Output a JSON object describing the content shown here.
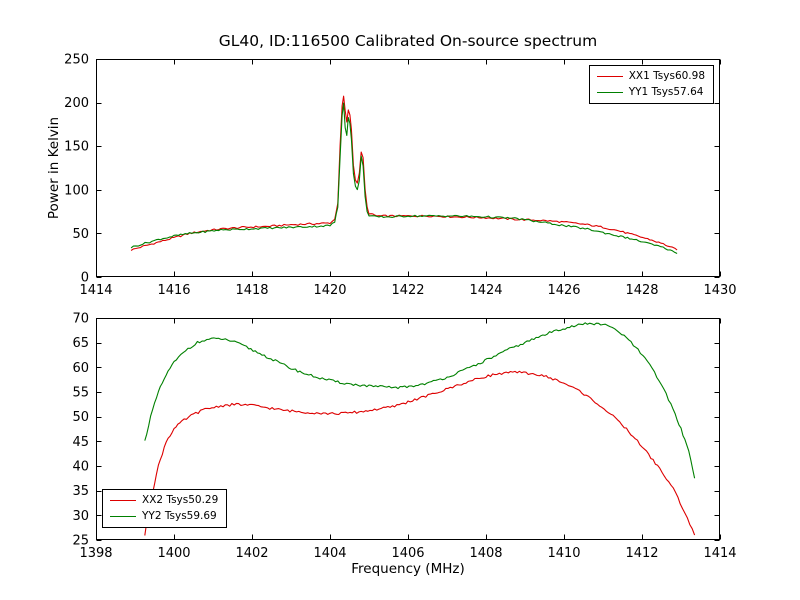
{
  "figure": {
    "title": "GL40, ID:116500 Calibrated On-source spectrum",
    "xlabel": "Frequency (MHz)",
    "ylabel": "Power in Kelvin",
    "background": "#ffffff",
    "axis_color": "#000000"
  },
  "chart_data": [
    {
      "type": "line",
      "title": "GL40, ID:116500 Calibrated On-source spectrum",
      "xlabel": "",
      "ylabel": "Power in Kelvin",
      "xlim": [
        1414,
        1430
      ],
      "ylim": [
        0,
        250
      ],
      "xticks": [
        1414,
        1416,
        1418,
        1420,
        1422,
        1424,
        1426,
        1428,
        1430
      ],
      "yticks": [
        0,
        50,
        100,
        150,
        200,
        250
      ],
      "grid": false,
      "legend_position": "upper right",
      "series": [
        {
          "name": "XX1 Tsys60.98",
          "color": "#dd0000",
          "x": [
            1414.9,
            1415.2,
            1415.6,
            1416.0,
            1416.4,
            1416.8,
            1417.2,
            1417.8,
            1418.4,
            1419.0,
            1419.6,
            1420.0,
            1420.12,
            1420.2,
            1420.26,
            1420.31,
            1420.35,
            1420.39,
            1420.43,
            1420.47,
            1420.51,
            1420.55,
            1420.6,
            1420.65,
            1420.7,
            1420.75,
            1420.8,
            1420.85,
            1420.9,
            1420.95,
            1421.0,
            1421.2,
            1421.6,
            1422.0,
            1422.6,
            1423.2,
            1424.0,
            1424.8,
            1425.4,
            1426.0,
            1426.6,
            1427.0,
            1427.4,
            1427.8,
            1428.2,
            1428.6,
            1428.9
          ],
          "y": [
            31,
            35,
            40,
            45,
            50,
            53,
            55,
            57,
            58,
            60,
            61,
            62,
            66,
            85,
            150,
            196,
            207,
            190,
            178,
            191,
            186,
            170,
            128,
            112,
            108,
            118,
            144,
            136,
            100,
            80,
            73,
            70,
            70,
            70,
            70,
            69,
            68,
            66,
            65,
            63,
            60,
            57,
            53,
            48,
            43,
            37,
            31
          ]
        },
        {
          "name": "YY1 Tsys57.64",
          "color": "#008000",
          "x": [
            1414.9,
            1415.2,
            1415.6,
            1416.0,
            1416.4,
            1416.8,
            1417.2,
            1417.8,
            1418.4,
            1419.0,
            1419.6,
            1420.0,
            1420.12,
            1420.2,
            1420.26,
            1420.31,
            1420.35,
            1420.39,
            1420.43,
            1420.47,
            1420.51,
            1420.55,
            1420.6,
            1420.65,
            1420.7,
            1420.75,
            1420.8,
            1420.85,
            1420.9,
            1420.95,
            1421.0,
            1421.2,
            1421.6,
            1422.0,
            1422.6,
            1423.2,
            1424.0,
            1424.8,
            1425.4,
            1426.0,
            1426.6,
            1427.0,
            1427.4,
            1427.8,
            1428.2,
            1428.6,
            1428.9
          ],
          "y": [
            34,
            38,
            43,
            47,
            50,
            52,
            54,
            55,
            56,
            57,
            58,
            59,
            63,
            80,
            138,
            186,
            200,
            172,
            162,
            183,
            177,
            158,
            118,
            104,
            101,
            110,
            138,
            128,
            93,
            75,
            70,
            69,
            69,
            70,
            70,
            70,
            69,
            67,
            63,
            59,
            55,
            51,
            47,
            43,
            38,
            33,
            27
          ]
        }
      ]
    },
    {
      "type": "line",
      "title": "",
      "xlabel": "Frequency (MHz)",
      "ylabel": "",
      "xlim": [
        1398,
        1414
      ],
      "ylim": [
        25,
        70
      ],
      "xticks": [
        1398,
        1400,
        1402,
        1404,
        1406,
        1408,
        1410,
        1412,
        1414
      ],
      "yticks": [
        25,
        30,
        35,
        40,
        45,
        50,
        55,
        60,
        65,
        70
      ],
      "grid": false,
      "legend_position": "lower left",
      "series": [
        {
          "name": "XX2 Tsys50.29",
          "color": "#dd0000",
          "x": [
            1399.25,
            1399.4,
            1399.6,
            1399.8,
            1400.0,
            1400.2,
            1400.5,
            1400.8,
            1401.2,
            1401.6,
            1402.0,
            1402.4,
            1402.8,
            1403.2,
            1403.6,
            1404.0,
            1404.4,
            1404.8,
            1405.2,
            1405.6,
            1406.0,
            1406.4,
            1406.8,
            1407.2,
            1407.6,
            1408.0,
            1408.4,
            1408.8,
            1409.2,
            1409.6,
            1410.0,
            1410.4,
            1410.8,
            1411.2,
            1411.6,
            1412.0,
            1412.4,
            1412.8,
            1413.1,
            1413.35
          ],
          "y": [
            26,
            33,
            40,
            45,
            47.5,
            49,
            50.5,
            51.5,
            52.2,
            52.5,
            52.3,
            51.8,
            51.3,
            51.0,
            50.8,
            50.6,
            50.7,
            51.0,
            51.5,
            52.0,
            53.0,
            54.0,
            55.0,
            56.2,
            57.2,
            58.2,
            58.8,
            59.0,
            58.7,
            58.0,
            56.8,
            55.2,
            53.0,
            50.5,
            47.5,
            44.0,
            40.0,
            35.5,
            30.5,
            26.0
          ]
        },
        {
          "name": "YY2 Tsys59.69",
          "color": "#008000",
          "x": [
            1399.25,
            1399.4,
            1399.6,
            1399.8,
            1400.0,
            1400.3,
            1400.6,
            1400.9,
            1401.2,
            1401.5,
            1401.8,
            1402.2,
            1402.6,
            1403.0,
            1403.4,
            1403.8,
            1404.2,
            1404.6,
            1405.0,
            1405.4,
            1405.8,
            1406.2,
            1406.6,
            1407.0,
            1407.4,
            1407.8,
            1408.2,
            1408.6,
            1409.0,
            1409.4,
            1409.8,
            1410.2,
            1410.6,
            1411.0,
            1411.3,
            1411.6,
            1411.9,
            1412.2,
            1412.5,
            1412.8,
            1413.0,
            1413.2,
            1413.35
          ],
          "y": [
            45,
            50,
            55,
            58.5,
            61,
            63.5,
            65,
            65.7,
            65.8,
            65.3,
            64.3,
            62.8,
            61.3,
            59.8,
            58.6,
            57.7,
            57.0,
            56.5,
            56.2,
            56.0,
            55.9,
            56.3,
            57.0,
            58.0,
            59.3,
            60.7,
            62.2,
            63.7,
            65.0,
            66.3,
            67.5,
            68.3,
            68.9,
            68.7,
            67.8,
            66.0,
            63.5,
            60.5,
            56.5,
            51.5,
            47.5,
            43.0,
            37.5
          ]
        }
      ]
    }
  ]
}
